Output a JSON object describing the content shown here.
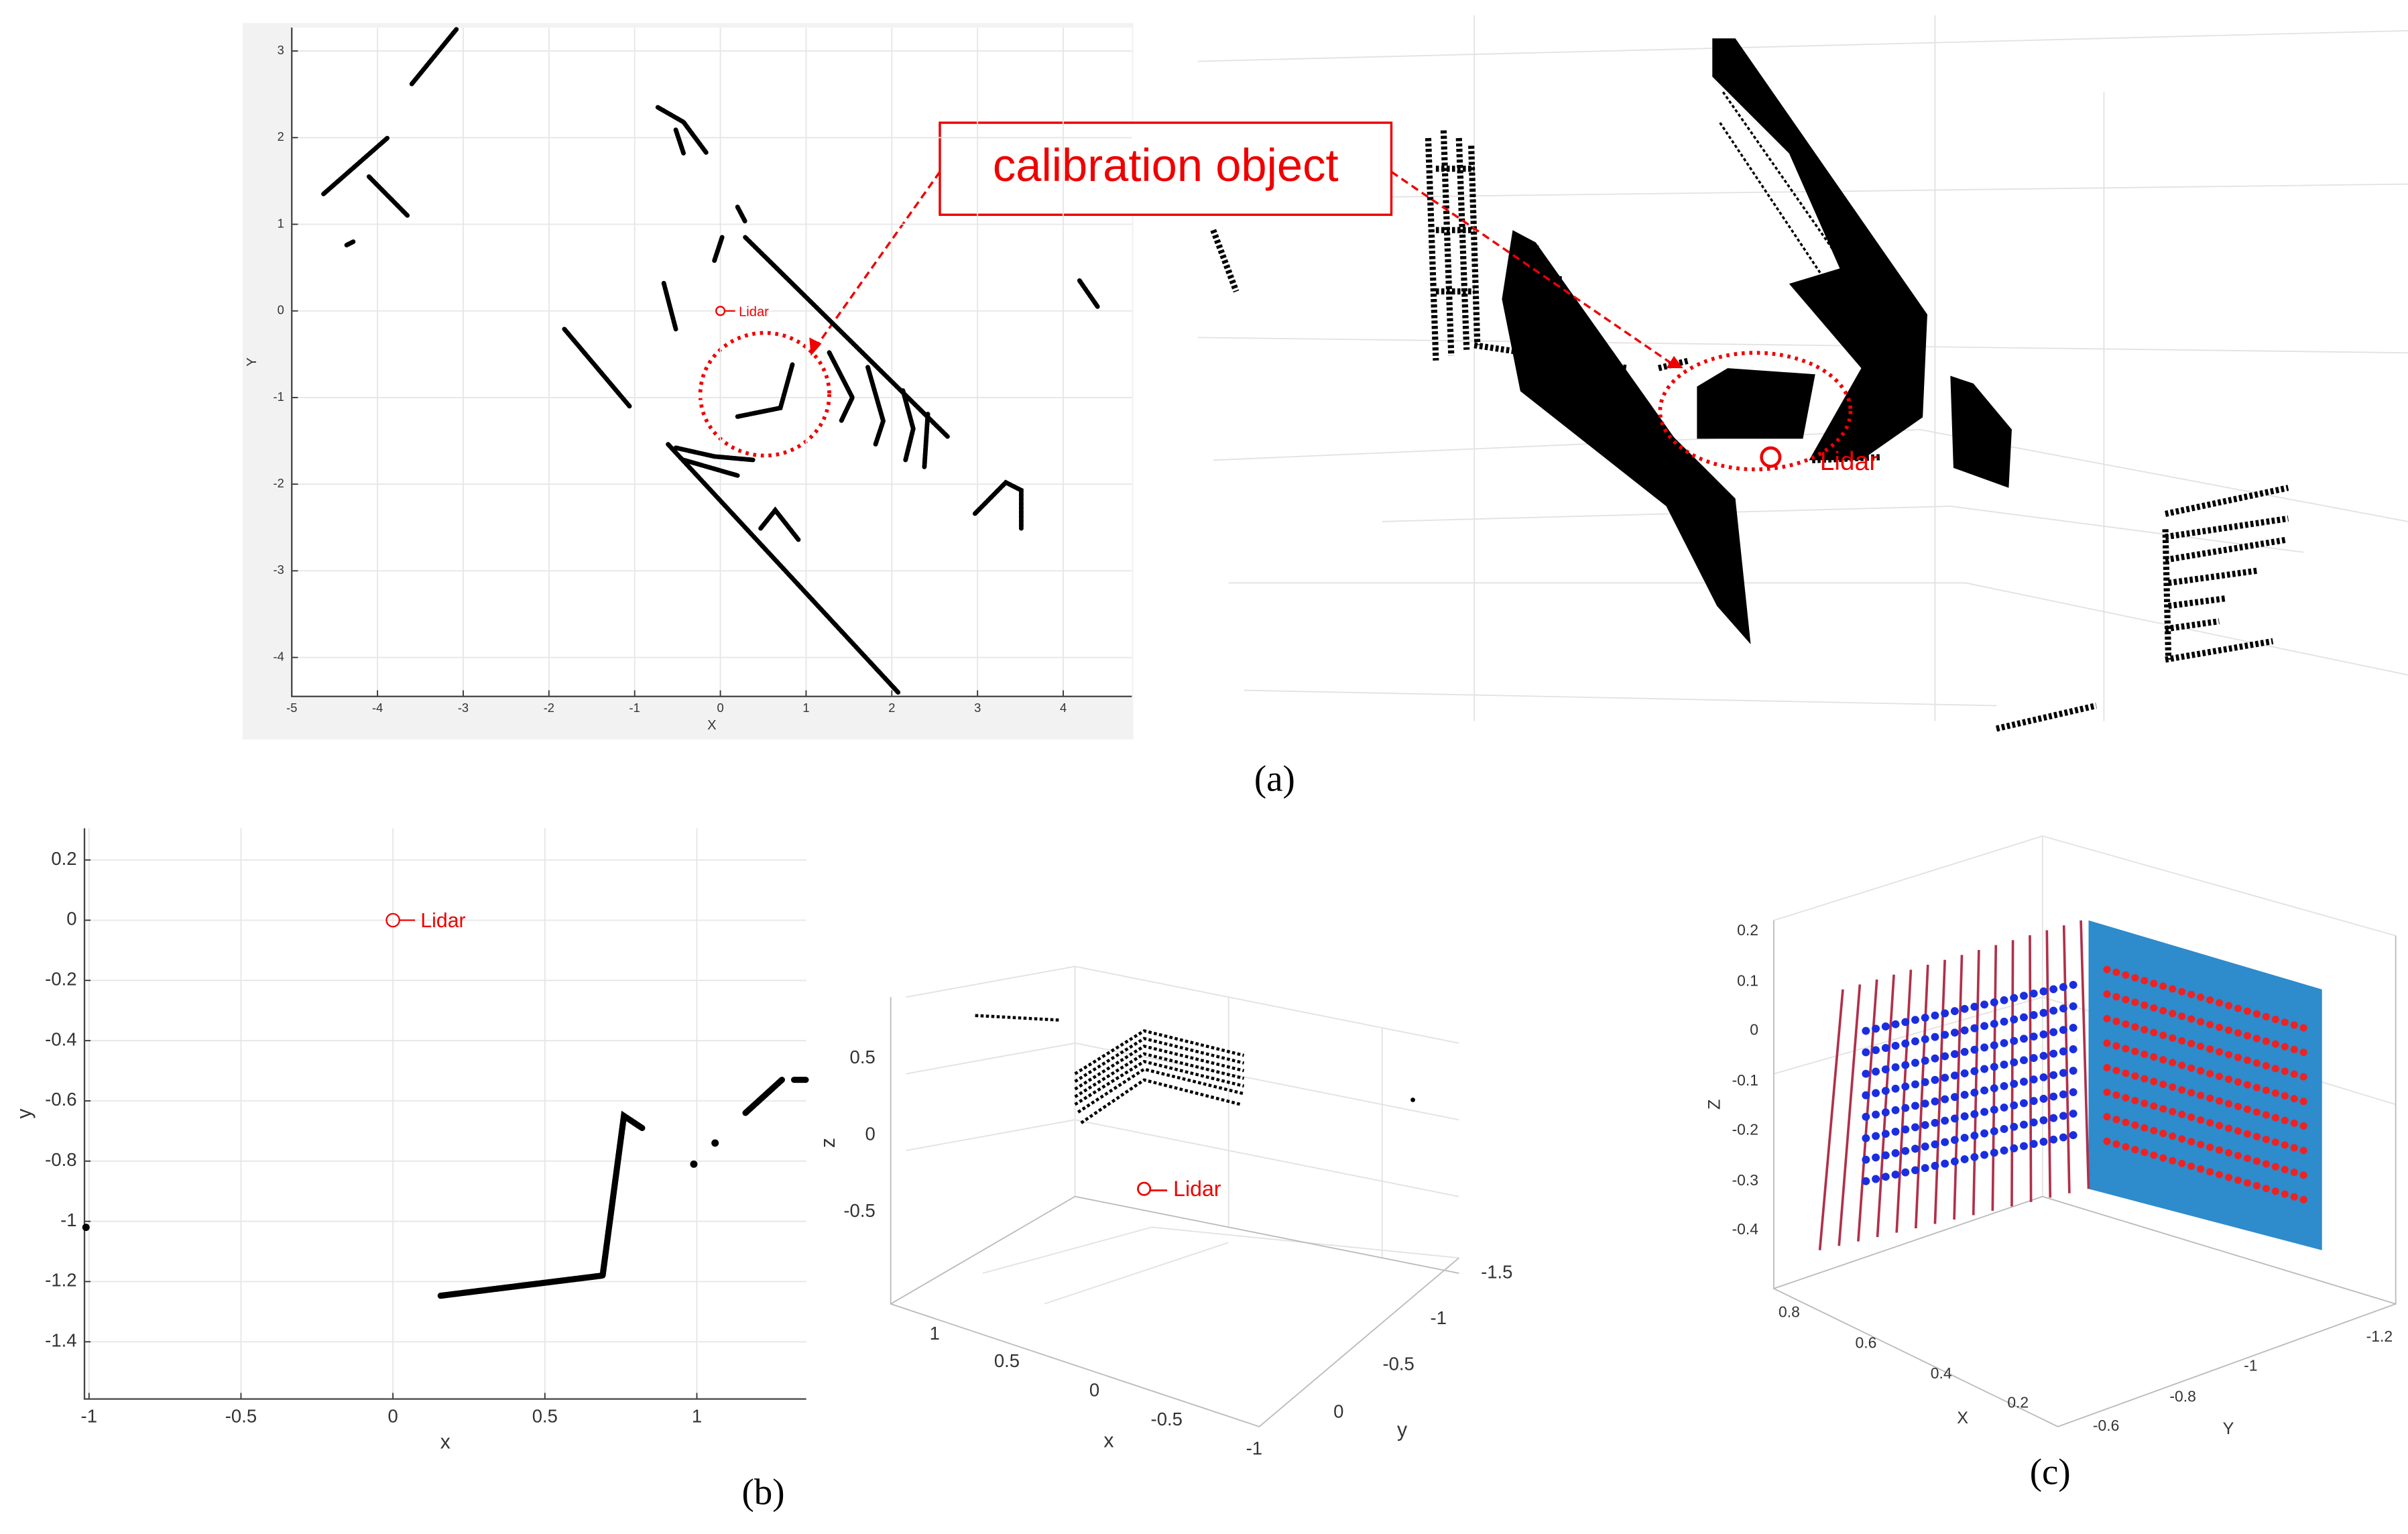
{
  "figure": {
    "panel_labels": [
      "(a)",
      "(b)",
      "(c)"
    ],
    "callout": "calibration object"
  },
  "chart_data": [
    {
      "type": "line",
      "xlabel": "X",
      "ylabel": "Y",
      "annotation": "Lidar",
      "color": "#000000",
      "grid": true,
      "xlim": [
        -5,
        4.8
      ],
      "ylim": [
        -4.45,
        3.27
      ],
      "xticks": [
        -5,
        -4,
        -3,
        -2,
        -1,
        0,
        1,
        2,
        3,
        4
      ],
      "yticks": [
        -4,
        -3,
        -2,
        -1,
        0,
        1,
        2,
        3
      ],
      "x": [
        -3.6,
        -3.08,
        null,
        -4.63,
        -3.88,
        null,
        -4.1,
        -3.65,
        null,
        -4.36,
        -4.28,
        null,
        -0.73,
        -0.43,
        -0.16,
        null,
        -0.52,
        -0.43,
        null,
        0.2,
        0.29,
        null,
        0.02,
        -0.07,
        null,
        -0.66,
        -0.52,
        null,
        -1.82,
        -1.06,
        null,
        0.29,
        2.65,
        null,
        1.27,
        1.54,
        1.41,
        null,
        1.72,
        1.9,
        1.81,
        null,
        2.13,
        2.25,
        2.16,
        null,
        2.42,
        2.38,
        null,
        0.2,
        0.7,
        0.84,
        null,
        -0.61,
        2.08,
        null,
        -0.52,
        -0.07,
        0.38,
        null,
        -0.43,
        0.2,
        null,
        0.47,
        0.64,
        0.91,
        null,
        2.97,
        3.33,
        3.51,
        3.51,
        null,
        4.19,
        4.4
      ],
      "values": [
        2.62,
        3.25,
        null,
        1.35,
        2.0,
        null,
        1.55,
        1.1,
        null,
        0.76,
        0.8,
        null,
        2.35,
        2.18,
        1.82,
        null,
        2.09,
        1.82,
        null,
        1.2,
        1.03,
        null,
        0.85,
        0.58,
        null,
        0.32,
        -0.21,
        null,
        -0.21,
        -1.1,
        null,
        0.85,
        -1.45,
        null,
        -0.48,
        -1.0,
        -1.27,
        null,
        -0.65,
        -1.27,
        -1.54,
        null,
        -0.92,
        -1.36,
        -1.72,
        null,
        -1.19,
        -1.8,
        null,
        -1.22,
        -1.12,
        -0.62,
        null,
        -1.54,
        -4.41,
        null,
        -1.58,
        -1.68,
        -1.72,
        null,
        -1.72,
        -1.9,
        null,
        -2.51,
        -2.3,
        -2.64,
        null,
        -2.34,
        -1.98,
        -2.07,
        -2.51,
        null,
        0.35,
        0.05
      ]
    },
    {
      "type": "scatter3d",
      "annotation": "Lidar"
    },
    {
      "type": "line",
      "xlabel": "x",
      "ylabel": "y",
      "annotation": "Lidar",
      "color": "#000000",
      "grid": true,
      "xlim": [
        -1.015,
        1.36
      ],
      "ylim": [
        -1.59,
        0.305
      ],
      "xticks": [
        -1,
        -0.5,
        0,
        0.5,
        1
      ],
      "yticks": [
        -1.4,
        -1.2,
        -1,
        -0.8,
        -0.6,
        -0.4,
        -0.2,
        0,
        0.2
      ],
      "x": [
        0.157,
        0.69,
        0.76,
        0.82,
        null,
        0.99,
        null,
        1.06,
        null,
        1.16,
        1.28,
        null,
        1.32,
        1.36,
        null,
        -1.01
      ],
      "values": [
        -1.247,
        -1.18,
        -0.65,
        -0.69,
        null,
        -0.81,
        null,
        -0.74,
        null,
        -0.64,
        -0.53,
        null,
        -0.53,
        -0.53,
        null,
        -1.02
      ]
    },
    {
      "type": "scatter3d",
      "annotation": "Lidar",
      "xlabel": "x",
      "ylabel": "y",
      "zlabel": "z",
      "xticks": [
        1,
        0.5,
        0,
        -0.5,
        -1
      ],
      "yticks": [
        -1.5,
        -1,
        -0.5,
        0
      ],
      "zticks": [
        0.5,
        0,
        -0.5
      ]
    },
    {
      "type": "scatter3d",
      "xlabel": "X",
      "ylabel": "Y",
      "zlabel": "Z",
      "xticks": [
        0.8,
        0.6,
        0.4,
        0.2
      ],
      "yticks": [
        -0.6,
        -0.8,
        -1,
        -1.2
      ],
      "zticks": [
        0.2,
        0.1,
        0,
        -0.1,
        -0.2,
        -0.3,
        -0.4
      ]
    }
  ]
}
